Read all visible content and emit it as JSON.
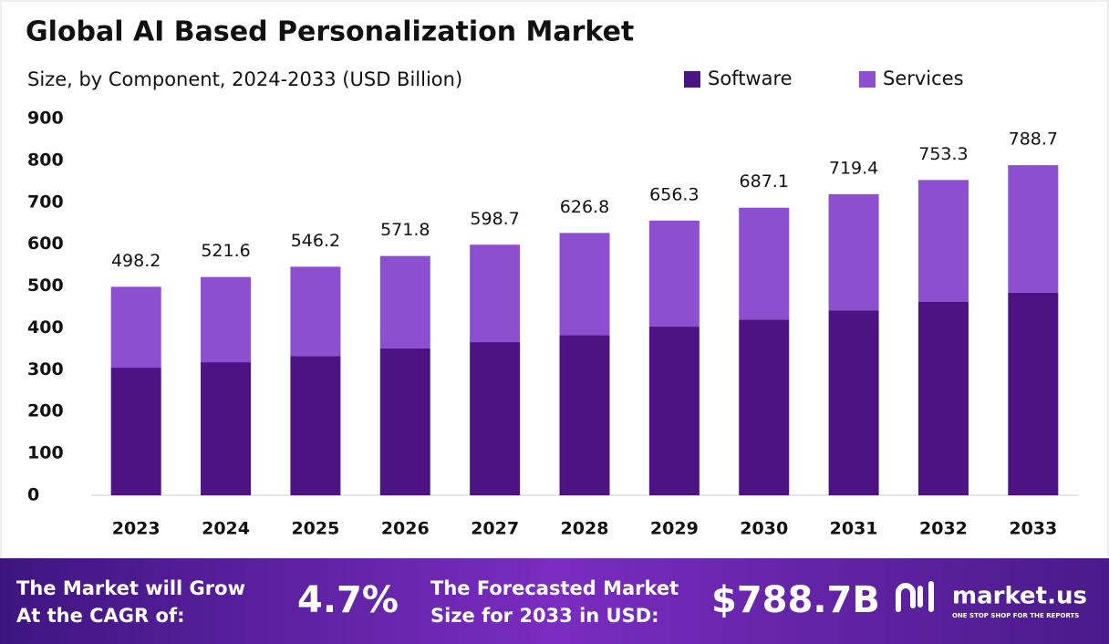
{
  "chart_data": {
    "type": "stacked_bar",
    "title": "Global AI Based Personalization Market",
    "subtitle": "Size, by Component, 2024-2033 (USD Billion)",
    "categories": [
      "2023",
      "2024",
      "2025",
      "2026",
      "2027",
      "2028",
      "2029",
      "2030",
      "2031",
      "2032",
      "2033"
    ],
    "series": [
      {
        "name": "Software",
        "color": "#4b1482",
        "values": [
          305,
          318,
          333,
          351,
          366,
          383,
          403,
          420,
          442,
          462,
          484
        ]
      },
      {
        "name": "Services",
        "color": "#8b4fd0",
        "values": [
          193.2,
          203.6,
          213.2,
          220.8,
          232.7,
          243.8,
          253.3,
          267.1,
          277.4,
          291.3,
          304.7
        ]
      }
    ],
    "totals": [
      498.2,
      521.6,
      546.2,
      571.8,
      598.7,
      626.8,
      656.3,
      687.1,
      719.4,
      753.3,
      788.7
    ],
    "ylim": [
      0,
      900
    ],
    "yticks": [
      0,
      100,
      200,
      300,
      400,
      500,
      600,
      700,
      800,
      900
    ],
    "grid": false,
    "legend": "top-right"
  },
  "footer": {
    "cagr_label": [
      "The Market will Grow",
      "At the CAGR of:"
    ],
    "cagr_value": "4.7%",
    "forecast_label": [
      "The Forecasted Market",
      "Size for 2033 in USD:"
    ],
    "forecast_value": "$788.7B",
    "brand": "market.us",
    "tagline": "ONE STOP SHOP FOR THE REPORTS"
  }
}
